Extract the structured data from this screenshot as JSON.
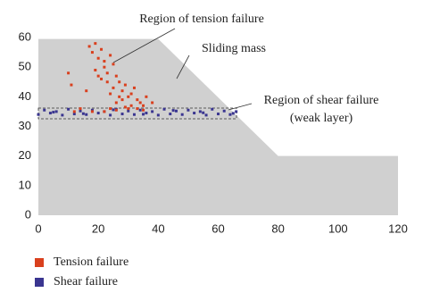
{
  "chart_data": {
    "type": "scatter",
    "annotations": [
      "Region of tension failure",
      "Sliding mass",
      "Region of shear failure",
      "(weak layer)"
    ],
    "profile": {
      "x": [
        0,
        40,
        80,
        120
      ],
      "y": [
        59.5,
        59.5,
        20,
        20
      ],
      "color": "#d0d0d0"
    },
    "series": [
      {
        "name": "Tension failure",
        "color": "#d9401e",
        "x": [
          17,
          18,
          19,
          20,
          21,
          22,
          22,
          23,
          24,
          25,
          26,
          27,
          28,
          29,
          30,
          31,
          32,
          33,
          34,
          35,
          20,
          23,
          25,
          27,
          19,
          21,
          24,
          26,
          28,
          30,
          10,
          11,
          16,
          36,
          38,
          29,
          31,
          26,
          22,
          24,
          18,
          33,
          35,
          12,
          14
        ],
        "y": [
          57,
          55,
          58,
          53,
          56,
          52,
          50,
          48,
          54,
          51,
          47,
          45,
          42,
          44,
          40,
          41,
          43,
          39,
          38,
          37,
          47,
          45,
          43,
          40,
          49,
          46,
          41,
          38,
          39,
          36,
          48,
          44,
          42,
          40,
          38,
          36.5,
          37,
          35.5,
          35,
          36,
          35,
          36,
          35.5,
          35,
          36
        ]
      },
      {
        "name": "Shear failure",
        "color": "#3a3590",
        "x": [
          0,
          2,
          4,
          6,
          8,
          10,
          12,
          14,
          16,
          18,
          20,
          22,
          24,
          26,
          28,
          30,
          32,
          34,
          36,
          38,
          40,
          42,
          44,
          46,
          48,
          50,
          52,
          54,
          56,
          58,
          60,
          62,
          64,
          66,
          5,
          15,
          25,
          35,
          45,
          55,
          65
        ],
        "y": [
          34,
          35.5,
          34.5,
          35,
          33.8,
          35.8,
          34.2,
          35.2,
          34,
          35.5,
          34.5,
          35,
          33.8,
          35.8,
          34.2,
          35.2,
          34,
          35.5,
          34.5,
          35,
          33.8,
          35.8,
          34.2,
          35.2,
          34,
          35.5,
          34.5,
          35,
          33.8,
          35.8,
          34.2,
          35.2,
          34,
          35,
          34.8,
          34.3,
          35.6,
          34.1,
          35.4,
          34.6,
          34.4
        ]
      }
    ],
    "xlim": [
      0,
      120
    ],
    "ylim": [
      0,
      60
    ],
    "xticks": [
      0,
      20,
      40,
      60,
      80,
      100,
      120
    ],
    "yticks": [
      0,
      10,
      20,
      30,
      40,
      50,
      60
    ]
  }
}
